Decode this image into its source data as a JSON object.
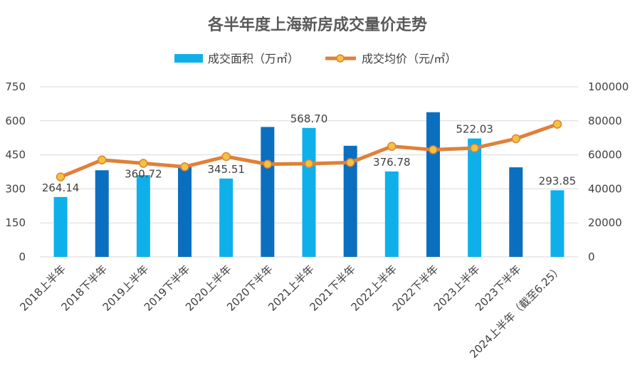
{
  "chart_data": {
    "type": "bar",
    "title": "各半年度上海新房成交量价走势",
    "categories": [
      "2018上半年",
      "2018下半年",
      "2019上半年",
      "2019下半年",
      "2020上半年",
      "2020下半年",
      "2021上半年",
      "2021下半年",
      "2022上半年",
      "2022下半年",
      "2023上半年",
      "2023下半年",
      "2024上半年（截至6.25）"
    ],
    "series": [
      {
        "name": "成交面积（万㎡）",
        "type": "bar",
        "axis": "left",
        "values": [
          264.14,
          382,
          360.72,
          398,
          345.51,
          573,
          568.7,
          490,
          376.78,
          638,
          522.03,
          395,
          293.85
        ],
        "data_labels": [
          "264.14",
          "",
          "360.72",
          "",
          "345.51",
          "",
          "568.70",
          "",
          "376.78",
          "",
          "522.03",
          "",
          "293.85"
        ],
        "colors": [
          "#0fb0ea",
          "#0b6fc0",
          "#0fb0ea",
          "#0b6fc0",
          "#0fb0ea",
          "#0b6fc0",
          "#0fb0ea",
          "#0b6fc0",
          "#0fb0ea",
          "#0b6fc0",
          "#0fb0ea",
          "#0b6fc0",
          "#0fb0ea"
        ]
      },
      {
        "name": "成交均价（元/㎡）",
        "type": "line",
        "axis": "right",
        "values": [
          47000,
          57000,
          55000,
          53000,
          59000,
          54500,
          54800,
          55500,
          65000,
          63000,
          64000,
          69500,
          78000
        ],
        "color": "#e0803a",
        "marker_color": "#f3c240"
      }
    ],
    "ylim_left": [
      0,
      750
    ],
    "yticks_left": [
      "0",
      "150",
      "300",
      "450",
      "600",
      "750"
    ],
    "ylim_right": [
      0,
      100000
    ],
    "yticks_right": [
      "0",
      "20000",
      "40000",
      "60000",
      "80000",
      "100000"
    ],
    "grid": true,
    "legend": "top-center"
  }
}
